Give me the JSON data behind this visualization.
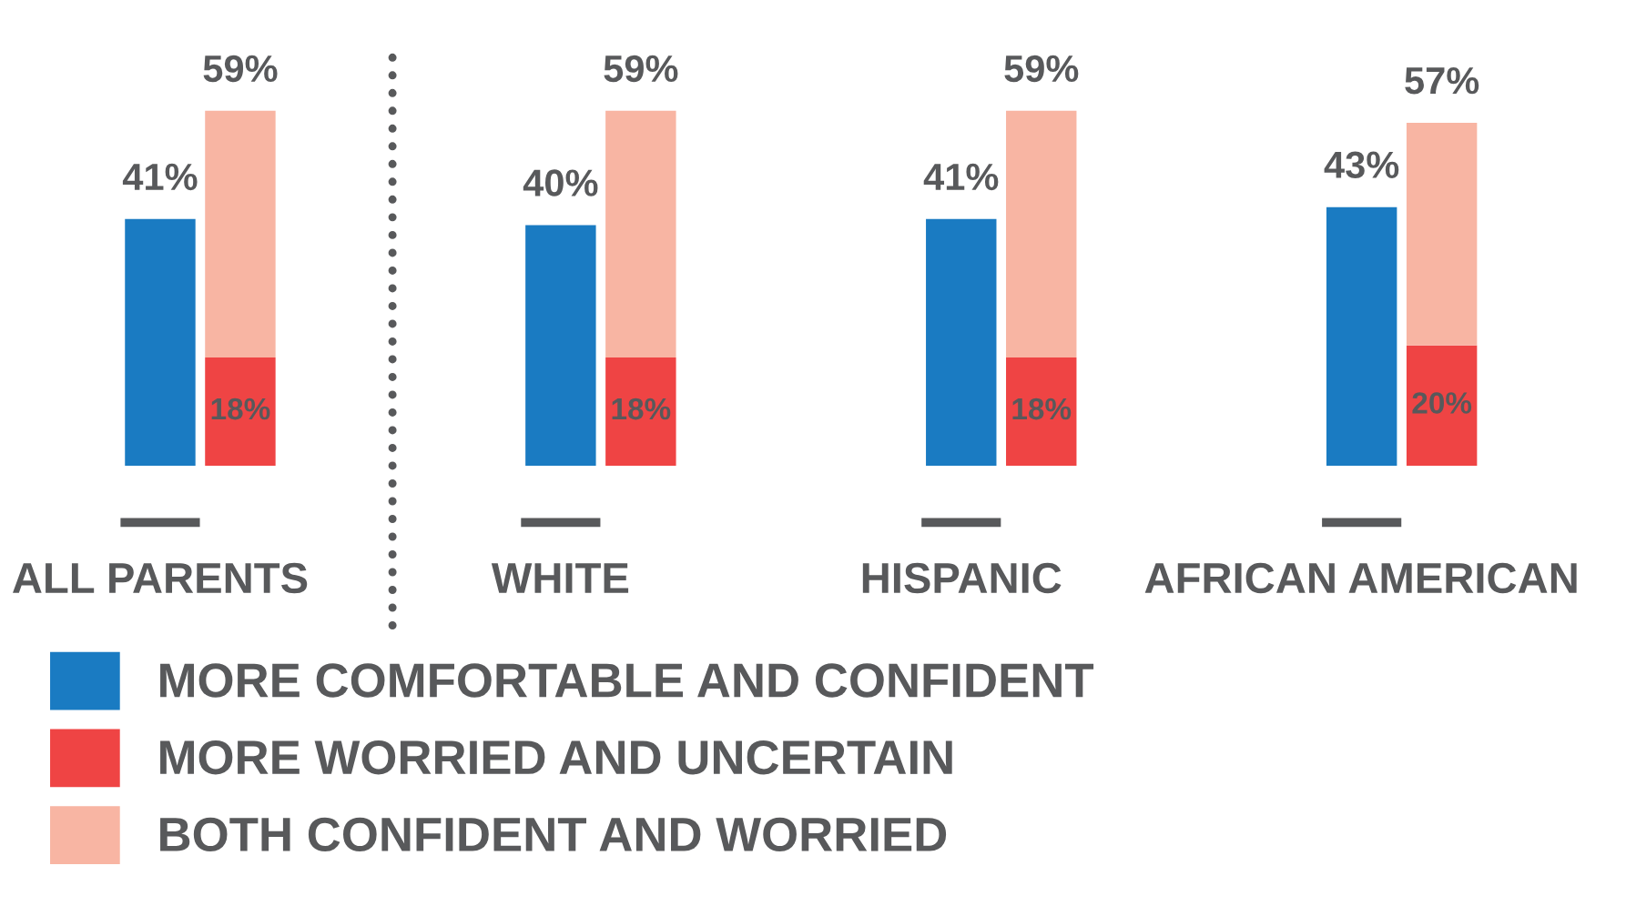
{
  "chart_data": {
    "type": "bar",
    "stacked": true,
    "categories": [
      "ALL PARENTS",
      null,
      null,
      null,
      null,
      "WHITE",
      null,
      null,
      null,
      null,
      "HISPANIC",
      null,
      null,
      null,
      null,
      "AFRICAN AMERICAN",
      null
    ],
    "series": [
      {
        "name": "MORE COMFORTABLE AND CONFIDENT",
        "color": "#1a7bc2",
        "values": [
          41,
          null,
          null,
          null,
          null,
          40,
          null,
          null,
          null,
          null,
          41,
          null,
          null,
          null,
          null,
          43,
          null
        ],
        "value_labels": [
          "41%",
          null,
          null,
          null,
          null,
          "40%",
          null,
          null,
          null,
          null,
          "41%",
          null,
          null,
          null,
          null,
          "43%",
          null
        ]
      },
      {
        "name": "MORE WORRIED AND UNCERTAIN",
        "color": "#ef4444",
        "values": [
          null,
          18,
          null,
          null,
          null,
          null,
          18,
          null,
          null,
          null,
          null,
          18,
          null,
          null,
          null,
          null,
          20
        ],
        "value_labels": [
          null,
          "18%",
          null,
          null,
          null,
          null,
          "18%",
          null,
          null,
          null,
          null,
          "18%",
          null,
          null,
          null,
          null,
          "20%"
        ]
      },
      {
        "name": "BOTH CONFIDENT AND WORRIED",
        "color": "#f8b5a3",
        "values": [
          null,
          41,
          null,
          null,
          null,
          null,
          41,
          null,
          null,
          null,
          null,
          41,
          null,
          null,
          null,
          null,
          37
        ]
      }
    ],
    "totals": [
      null,
      "59%",
      null,
      null,
      null,
      null,
      "59%",
      null,
      null,
      null,
      null,
      "59%",
      null,
      null,
      null,
      null,
      "57%"
    ],
    "legend": "bottom left",
    "grid": false
  }
}
